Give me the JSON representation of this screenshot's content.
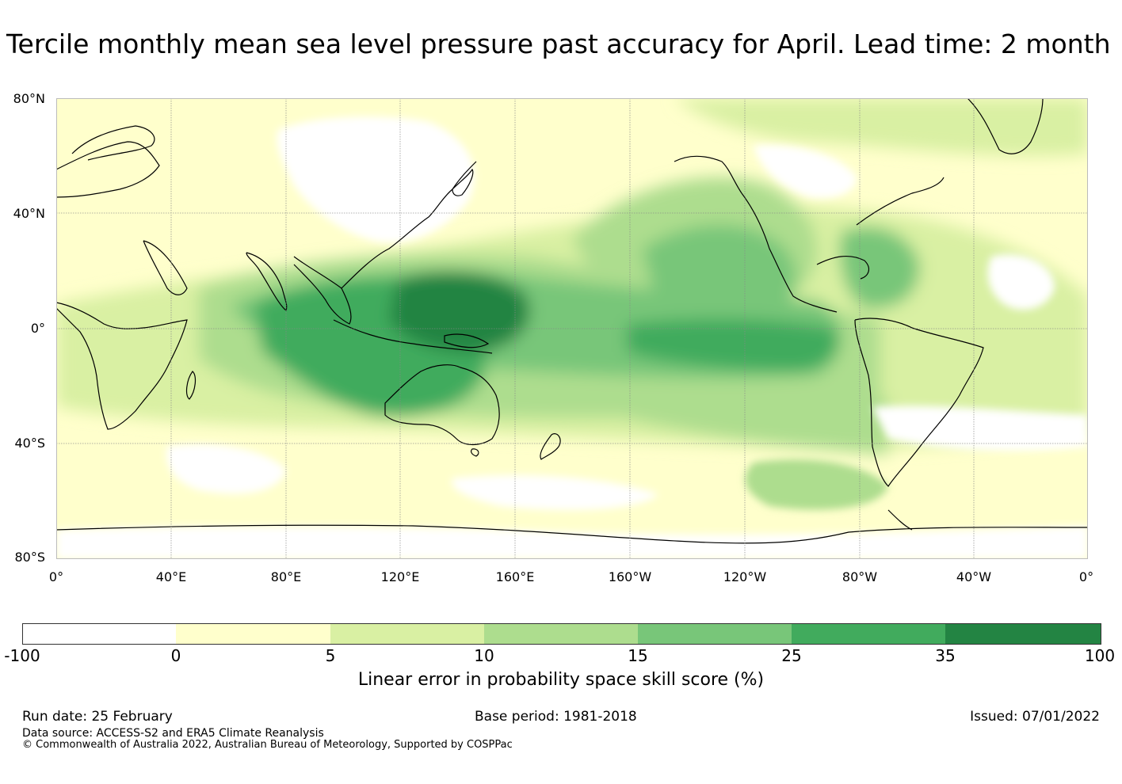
{
  "title": "Tercile monthly mean sea level pressure past accuracy for April. Lead time: 2 month",
  "map": {
    "lat_labels": [
      "80°N",
      "40°N",
      "0°",
      "40°S",
      "80°S"
    ],
    "lon_labels": [
      "0°",
      "40°E",
      "80°E",
      "120°E",
      "160°E",
      "160°W",
      "120°W",
      "80°W",
      "40°W",
      "0°"
    ],
    "lon_extent": [
      0,
      360
    ],
    "lat_extent": [
      -80,
      80
    ],
    "grid_lines": true,
    "regions": [
      {
        "name": "white-north-eurasia",
        "lon": [
          75,
          140
        ],
        "lat": [
          45,
          78
        ],
        "level": -1
      },
      {
        "name": "west-pacific-core",
        "lon": [
          122,
          160
        ],
        "lat": [
          -5,
          17
        ],
        "level": 5
      },
      {
        "name": "maritime-continent",
        "lon": [
          92,
          160
        ],
        "lat": [
          -30,
          20
        ],
        "level": 4
      },
      {
        "name": "indian-ocean-band",
        "lon": [
          60,
          125
        ],
        "lat": [
          -25,
          12
        ],
        "level": 3
      },
      {
        "name": "central-pacific",
        "lon": [
          165,
          270
        ],
        "lat": [
          -20,
          10
        ],
        "level": 4
      },
      {
        "name": "north-pacific",
        "lon": [
          200,
          255
        ],
        "lat": [
          5,
          40
        ],
        "level": 3
      },
      {
        "name": "caribbean",
        "lon": [
          275,
          295
        ],
        "lat": [
          10,
          35
        ],
        "level": 3
      },
      {
        "name": "south-pacific",
        "lon": [
          170,
          280
        ],
        "lat": [
          -45,
          0
        ],
        "level": 2
      },
      {
        "name": "southern-ocean",
        "lon": [
          240,
          315
        ],
        "lat": [
          -65,
          -40
        ],
        "level": 1
      }
    ]
  },
  "colorbar": {
    "boundaries": [
      "-100",
      "0",
      "5",
      "10",
      "15",
      "25",
      "35",
      "100"
    ],
    "colors": [
      "#ffffff",
      "#ffffcc",
      "#d9f0a3",
      "#addd8e",
      "#78c679",
      "#41ab5d",
      "#238443"
    ],
    "label": "Linear error in probability space skill score (%)"
  },
  "footer": {
    "run_date": "Run date: 25 February",
    "base_period": "Base period: 1981-2018",
    "issued": "Issued: 07/01/2022",
    "data_source": "Data source: ACCESS-S2 and ERA5 Climate Reanalysis",
    "copyright": "© Commonwealth of Australia 2022, Australian Bureau of Meteorology, Supported by COSPPac"
  }
}
